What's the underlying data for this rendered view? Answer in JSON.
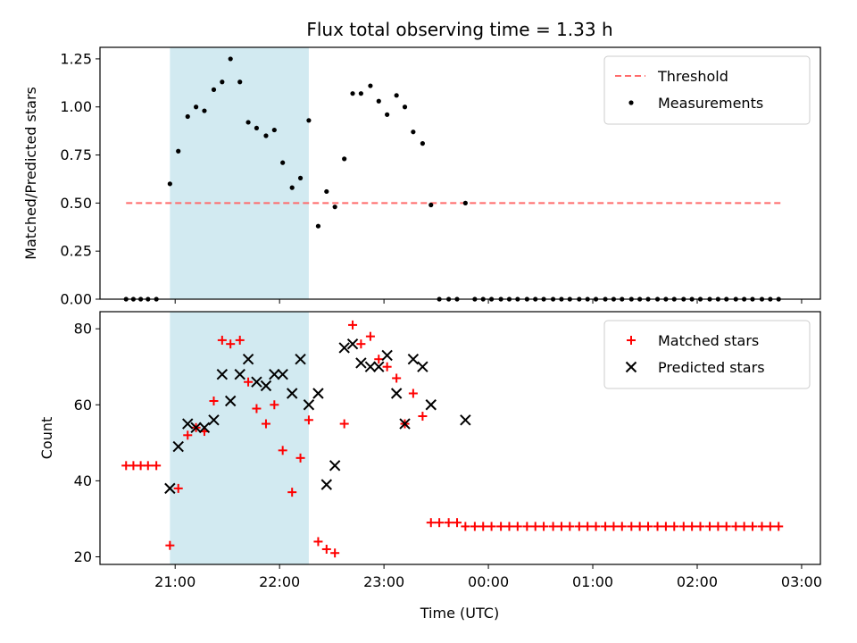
{
  "chart_data": [
    {
      "type": "scatter",
      "title": "Flux total observing time = 1.33 h",
      "xlabel": "",
      "ylabel": "Matched/Predicted stars",
      "xlim": [
        20.28,
        27.18
      ],
      "ylim": [
        0,
        1.31
      ],
      "yticks": [
        0.0,
        0.25,
        0.5,
        0.75,
        1.0,
        1.25
      ],
      "ytick_labels": [
        "0.00",
        "0.25",
        "0.50",
        "0.75",
        "1.00",
        "1.25"
      ],
      "shaded_region": {
        "x0": 20.95,
        "x1": 22.28,
        "color": "#add8e6"
      },
      "legend": {
        "position": "top-right",
        "entries": [
          "Threshold",
          "Measurements"
        ]
      },
      "series": [
        {
          "name": "Threshold",
          "kind": "line",
          "color": "#ff6b6b",
          "dash": true,
          "x": [
            20.53,
            26.8
          ],
          "y": [
            0.5,
            0.5
          ]
        },
        {
          "name": "Measurements",
          "kind": "scatter",
          "marker": "dot",
          "color": "#000000",
          "x": [
            20.53,
            20.6,
            20.67,
            20.74,
            20.82,
            20.95,
            21.03,
            21.12,
            21.2,
            21.28,
            21.37,
            21.45,
            21.53,
            21.62,
            21.7,
            21.78,
            21.87,
            21.95,
            22.03,
            22.12,
            22.2,
            22.28,
            22.37,
            22.45,
            22.53,
            22.62,
            22.7,
            22.78,
            22.87,
            22.95,
            23.03,
            23.12,
            23.2,
            23.28,
            23.37,
            23.45,
            23.53,
            23.62,
            23.7,
            23.78,
            23.87,
            23.95,
            24.03,
            24.12,
            24.2,
            24.28,
            24.37,
            24.45,
            24.53,
            24.62,
            24.7,
            24.78,
            24.87,
            24.95,
            25.03,
            25.12,
            25.2,
            25.28,
            25.37,
            25.45,
            25.53,
            25.62,
            25.7,
            25.78,
            25.87,
            25.95,
            26.03,
            26.12,
            26.2,
            26.28,
            26.37,
            26.45,
            26.53,
            26.62,
            26.7,
            26.78
          ],
          "y": [
            0,
            0,
            0,
            0,
            0,
            0.6,
            0.77,
            0.95,
            1.0,
            0.98,
            1.09,
            1.13,
            1.25,
            1.13,
            0.92,
            0.89,
            0.85,
            0.88,
            0.71,
            0.58,
            0.63,
            0.93,
            0.38,
            0.56,
            0.48,
            0.73,
            1.07,
            1.07,
            1.11,
            1.03,
            0.96,
            1.06,
            1.0,
            0.87,
            0.81,
            0.49,
            0,
            0,
            0,
            0.5,
            0,
            0,
            0,
            0,
            0,
            0,
            0,
            0,
            0,
            0,
            0,
            0,
            0,
            0,
            0,
            0,
            0,
            0,
            0,
            0,
            0,
            0,
            0,
            0,
            0,
            0,
            0,
            0,
            0,
            0,
            0,
            0,
            0,
            0,
            0,
            0
          ]
        }
      ]
    },
    {
      "type": "scatter",
      "title": "",
      "xlabel": "Time (UTC)",
      "ylabel": "Count",
      "xlim": [
        20.28,
        27.18
      ],
      "ylim": [
        18,
        84.5
      ],
      "yticks": [
        20,
        40,
        60,
        80
      ],
      "xticks": [
        21,
        22,
        23,
        24,
        25,
        26,
        27
      ],
      "xtick_labels": [
        "21:00",
        "22:00",
        "23:00",
        "00:00",
        "01:00",
        "02:00",
        "03:00"
      ],
      "shaded_region": {
        "x0": 20.95,
        "x1": 22.28,
        "color": "#add8e6"
      },
      "legend": {
        "position": "top-right",
        "entries": [
          "Matched stars",
          "Predicted stars"
        ]
      },
      "series": [
        {
          "name": "Matched stars",
          "kind": "scatter",
          "marker": "plus",
          "color": "#ff0000",
          "x": [
            20.53,
            20.6,
            20.67,
            20.74,
            20.82,
            20.95,
            21.03,
            21.12,
            21.2,
            21.28,
            21.37,
            21.45,
            21.53,
            21.62,
            21.7,
            21.78,
            21.87,
            21.95,
            22.03,
            22.12,
            22.2,
            22.28,
            22.37,
            22.45,
            22.53,
            22.62,
            22.7,
            22.78,
            22.87,
            22.95,
            23.03,
            23.12,
            23.2,
            23.28,
            23.37,
            23.45,
            23.53,
            23.62,
            23.7,
            23.78,
            23.87,
            23.95,
            24.03,
            24.12,
            24.2,
            24.28,
            24.37,
            24.45,
            24.53,
            24.62,
            24.7,
            24.78,
            24.87,
            24.95,
            25.03,
            25.12,
            25.2,
            25.28,
            25.37,
            25.45,
            25.53,
            25.62,
            25.7,
            25.78,
            25.87,
            25.95,
            26.03,
            26.12,
            26.2,
            26.28,
            26.37,
            26.45,
            26.53,
            26.62,
            26.7,
            26.78
          ],
          "y": [
            44,
            44,
            44,
            44,
            44,
            23,
            38,
            52,
            54,
            53,
            61,
            77,
            76,
            77,
            66,
            59,
            55,
            60,
            48,
            37,
            46,
            56,
            24,
            22,
            21,
            55,
            81,
            76,
            78,
            72,
            70,
            67,
            55,
            63,
            57,
            29,
            29,
            29,
            29,
            28,
            28,
            28,
            28,
            28,
            28,
            28,
            28,
            28,
            28,
            28,
            28,
            28,
            28,
            28,
            28,
            28,
            28,
            28,
            28,
            28,
            28,
            28,
            28,
            28,
            28,
            28,
            28,
            28,
            28,
            28,
            28,
            28,
            28,
            28,
            28,
            28
          ]
        },
        {
          "name": "Predicted stars",
          "kind": "scatter",
          "marker": "cross",
          "color": "#000000",
          "x": [
            20.95,
            21.03,
            21.12,
            21.2,
            21.28,
            21.37,
            21.45,
            21.53,
            21.62,
            21.7,
            21.78,
            21.87,
            21.95,
            22.03,
            22.12,
            22.2,
            22.28,
            22.37,
            22.45,
            22.53,
            22.62,
            22.7,
            22.78,
            22.87,
            22.95,
            23.03,
            23.12,
            23.2,
            23.28,
            23.37,
            23.45,
            23.78
          ],
          "y": [
            38,
            49,
            55,
            54,
            54,
            56,
            68,
            61,
            68,
            72,
            66,
            65,
            68,
            68,
            63,
            72,
            60,
            63,
            39,
            44,
            75,
            76,
            71,
            70,
            70,
            73,
            63,
            55,
            72,
            70,
            60,
            56
          ]
        }
      ]
    }
  ]
}
